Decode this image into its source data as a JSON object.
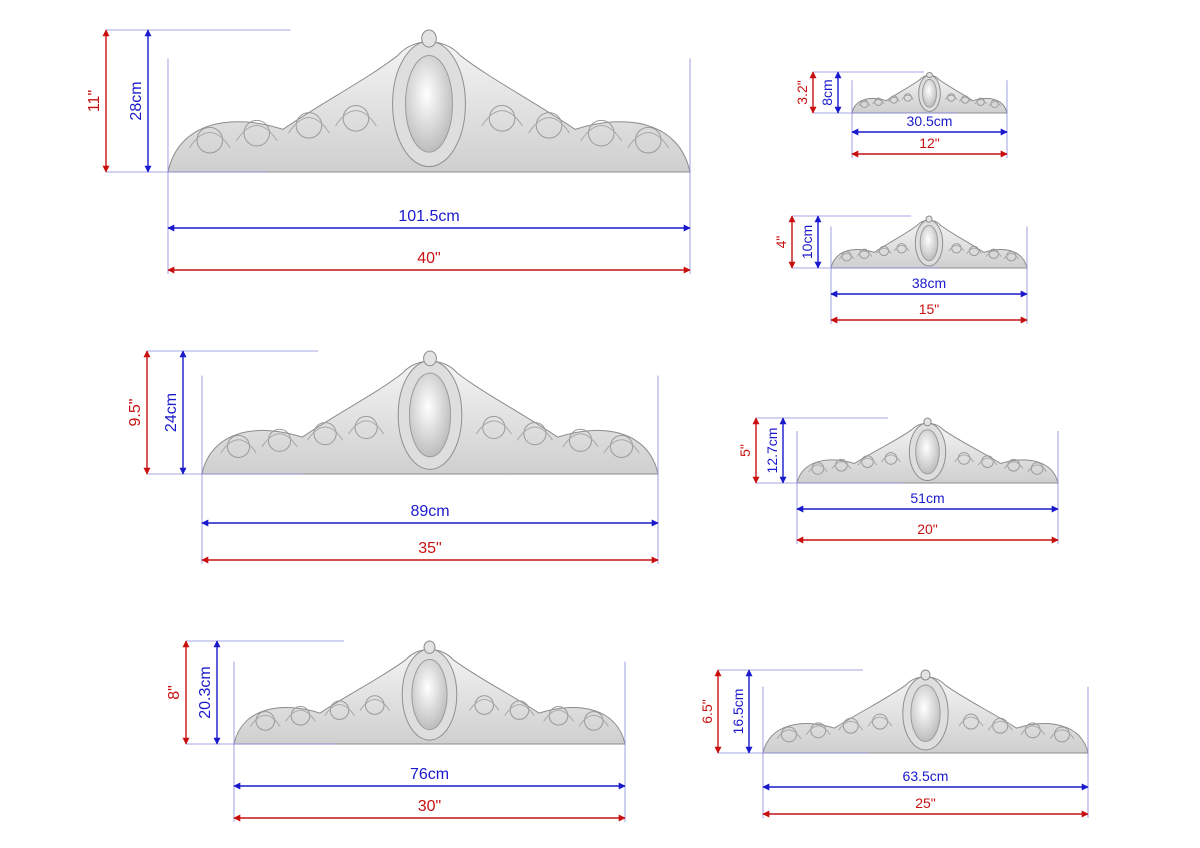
{
  "colors": {
    "metric": "#1a1acc",
    "imperial": "#c81010",
    "ornament_fill": "#e6e6e6",
    "ornament_stroke": "#8c8c8c",
    "guide": "#8888dd"
  },
  "items": [
    {
      "height_in": "11\"",
      "height_cm": "28cm",
      "width_cm": "101.5cm",
      "width_in": "40\""
    },
    {
      "height_in": "3.2\"",
      "height_cm": "8cm",
      "width_cm": "30.5cm",
      "width_in": "12\""
    },
    {
      "height_in": "4\"",
      "height_cm": "10cm",
      "width_cm": "38cm",
      "width_in": "15\""
    },
    {
      "height_in": "9.5\"",
      "height_cm": "24cm",
      "width_cm": "89cm",
      "width_in": "35\""
    },
    {
      "height_in": "5\"",
      "height_cm": "12.7cm",
      "width_cm": "51cm",
      "width_in": "20\""
    },
    {
      "height_in": "8\"",
      "height_cm": "20.3cm",
      "width_cm": "76cm",
      "width_in": "30\""
    },
    {
      "height_in": "6.5\"",
      "height_cm": "16.5cm",
      "width_cm": "63.5cm",
      "width_in": "25\""
    }
  ]
}
